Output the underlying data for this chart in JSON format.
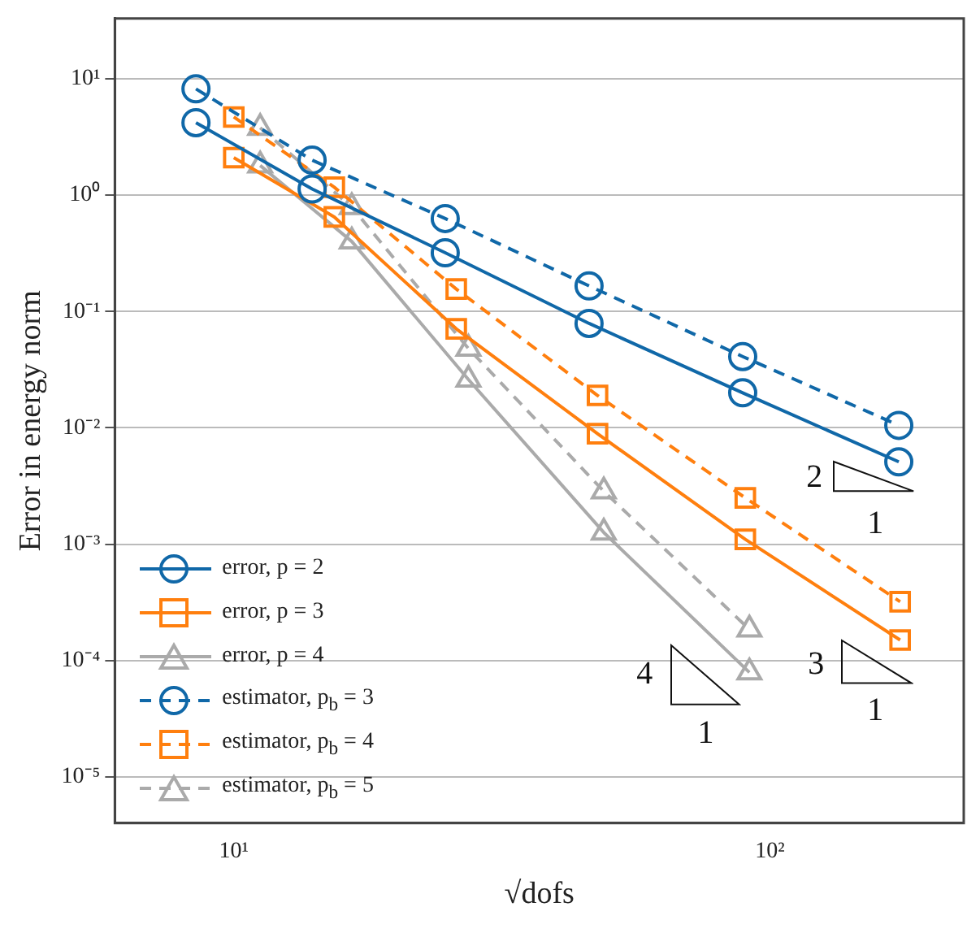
{
  "chart_data": {
    "type": "line",
    "xlabel": "√dofs",
    "ylabel": "Error in energy norm",
    "log": "xy",
    "grid": "y",
    "legend": "bottom left",
    "xlim": [
      6,
      230
    ],
    "xticks": [
      {
        "value": 10,
        "label": "10¹"
      },
      {
        "value": 100,
        "label": "10²"
      }
    ],
    "ylim": [
      4e-06,
      33
    ],
    "yticks": [
      {
        "value": 1e-05,
        "label": "10⁻⁵"
      },
      {
        "value": 0.0001,
        "label": "10⁻⁴"
      },
      {
        "value": 0.001,
        "label": "10⁻³"
      },
      {
        "value": 0.01,
        "label": "10⁻²"
      },
      {
        "value": 0.1,
        "label": "10⁻¹"
      },
      {
        "value": 1,
        "label": "10⁰"
      },
      {
        "value": 10,
        "label": "10¹"
      }
    ],
    "series": [
      {
        "name": "error, p = 2",
        "color": "#1068a8",
        "marker": "circle",
        "line_style": "solid",
        "x": [
          8.5,
          14,
          24.8,
          46,
          89,
          174
        ],
        "values": [
          4.2,
          1.13,
          0.32,
          0.079,
          0.02,
          0.0051
        ]
      },
      {
        "name": "error, p = 3",
        "color": "#ff7f0e",
        "marker": "square",
        "line_style": "solid",
        "x": [
          10,
          15.4,
          26,
          47.7,
          90,
          175
        ],
        "values": [
          2.1,
          0.65,
          0.071,
          0.0089,
          0.0011,
          0.00015
        ]
      },
      {
        "name": "error, p = 4",
        "color": "#aaaaaa",
        "marker": "triangle",
        "line_style": "solid",
        "x": [
          11.2,
          16.6,
          27.4,
          49,
          91.6
        ],
        "values": [
          1.8,
          0.4,
          0.026,
          0.00126,
          7.9e-05
        ]
      },
      {
        "name": "estimator, p$_{b}$ = 3",
        "color": "#1068a8",
        "marker": "circle",
        "line_style": "dashed",
        "x": [
          8.5,
          14,
          24.8,
          46,
          89,
          174
        ],
        "values": [
          8.2,
          2.0,
          0.63,
          0.166,
          0.041,
          0.0105
        ]
      },
      {
        "name": "estimator, p$_{b}$ = 4",
        "color": "#ff7f0e",
        "marker": "square",
        "line_style": "dashed",
        "x": [
          10,
          15.4,
          26,
          47.7,
          90,
          175
        ],
        "values": [
          4.7,
          1.17,
          0.156,
          0.019,
          0.0025,
          0.00032
        ]
      },
      {
        "name": "estimator, p$_{b}$ = 5",
        "color": "#aaaaaa",
        "marker": "triangle",
        "line_style": "dashed",
        "x": [
          11.2,
          16.6,
          27.4,
          49,
          91.6
        ],
        "values": [
          3.8,
          0.79,
          0.048,
          0.00285,
          0.000185
        ]
      }
    ],
    "annotations": [
      "2",
      "1",
      "4",
      "1",
      "3",
      "1"
    ]
  }
}
